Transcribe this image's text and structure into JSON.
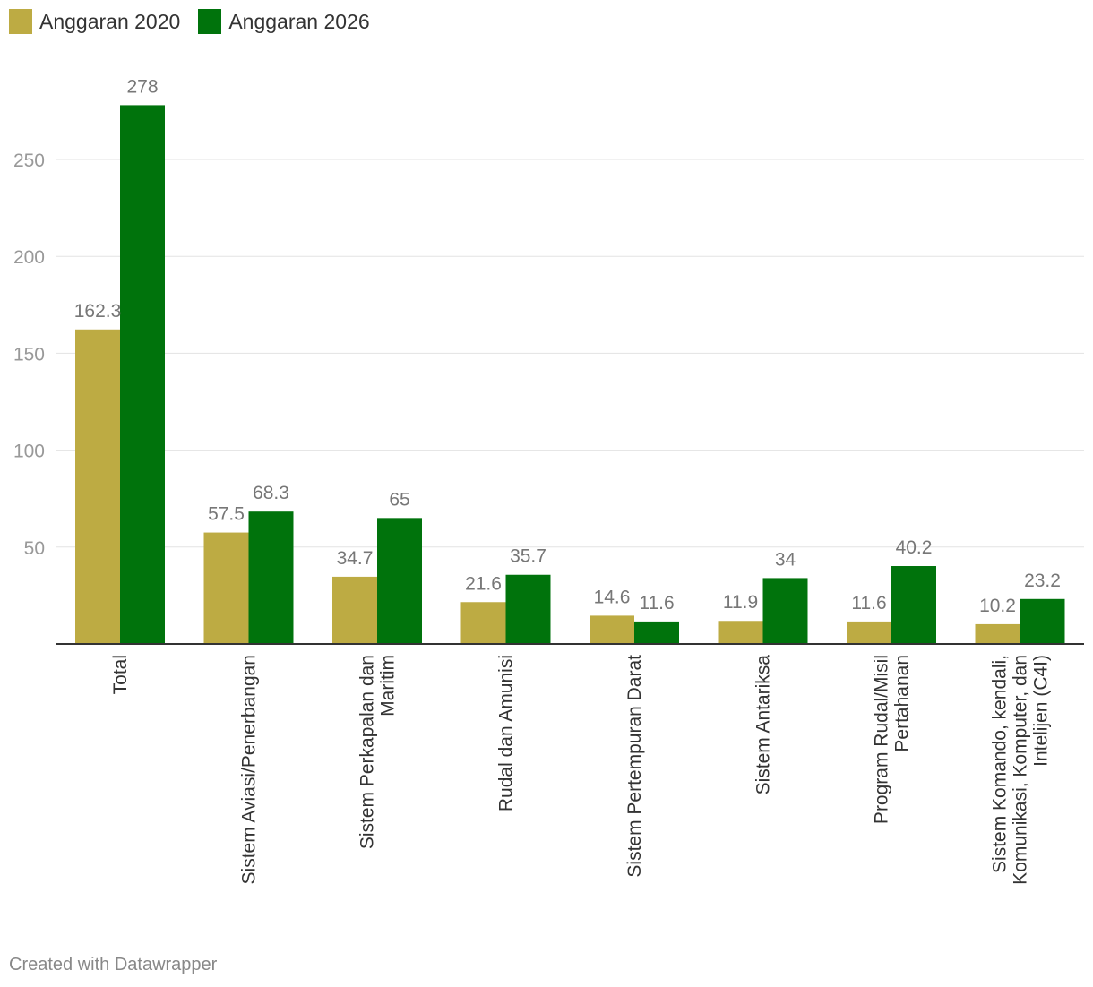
{
  "chart_data": {
    "type": "bar",
    "categories": [
      [
        "Total"
      ],
      [
        "Sistem Aviasi/Penerbangan"
      ],
      [
        "Sistem Perkapalan dan",
        "Maritim"
      ],
      [
        "Rudal dan Amunisi"
      ],
      [
        "Sistem Pertempuran Darat"
      ],
      [
        "Sistem Antariksa"
      ],
      [
        "Program Rudal/Misil",
        "Pertahanan"
      ],
      [
        "Sistem Komando, kendali,",
        "Komunikasi, Komputer, dan",
        "Intelijen (C4I)"
      ]
    ],
    "series": [
      {
        "name": "Anggaran 2020",
        "color": "#bdab43",
        "values": [
          162.3,
          57.5,
          34.7,
          21.6,
          14.6,
          11.9,
          11.6,
          10.2
        ]
      },
      {
        "name": "Anggaran 2026",
        "color": "#00730c",
        "values": [
          278,
          68.3,
          65,
          35.7,
          11.6,
          34,
          40.2,
          23.2
        ]
      }
    ],
    "yticks": [
      50,
      100,
      150,
      200,
      250
    ],
    "ylim": [
      0,
      278
    ],
    "grid": true,
    "legend": "top-left"
  },
  "footer": "Created with Datawrapper"
}
